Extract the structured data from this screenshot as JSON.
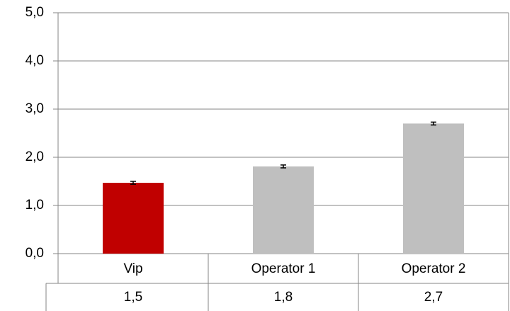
{
  "chart_data": {
    "type": "bar",
    "categories": [
      "Vip",
      "Operator 1",
      "Operator 2"
    ],
    "values": [
      1.47,
      1.81,
      2.7
    ],
    "value_labels": [
      "1,5",
      "1,8",
      "2,7"
    ],
    "errors": [
      0.03,
      0.03,
      0.03
    ],
    "colors": [
      "#c00000",
      "#bfbfbf",
      "#bfbfbf"
    ],
    "ylim": [
      0,
      5
    ],
    "yticks": [
      {
        "value": 0,
        "label": "0,0"
      },
      {
        "value": 1,
        "label": "1,0"
      },
      {
        "value": 2,
        "label": "2,0"
      },
      {
        "value": 3,
        "label": "3,0"
      },
      {
        "value": 4,
        "label": "4,0"
      },
      {
        "value": 5,
        "label": "5,0"
      }
    ],
    "grid": true
  }
}
